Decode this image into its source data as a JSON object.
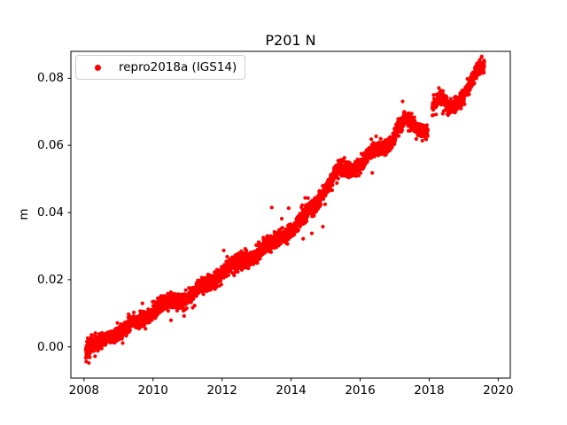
{
  "chart_data": {
    "type": "scatter",
    "title": "P201 N",
    "xlabel": "",
    "ylabel": "m",
    "grid": false,
    "legend_position": "upper left",
    "xlim": [
      2007.62,
      2020.35
    ],
    "ylim": [
      -0.0093,
      0.088
    ],
    "xticks": [
      {
        "value": 2008,
        "label": "2008"
      },
      {
        "value": 2010,
        "label": "2010"
      },
      {
        "value": 2012,
        "label": "2012"
      },
      {
        "value": 2014,
        "label": "2014"
      },
      {
        "value": 2016,
        "label": "2016"
      },
      {
        "value": 2018,
        "label": "2018"
      },
      {
        "value": 2020,
        "label": "2020"
      }
    ],
    "yticks": [
      {
        "value": 0.0,
        "label": "0.00"
      },
      {
        "value": 0.02,
        "label": "0.02"
      },
      {
        "value": 0.04,
        "label": "0.04"
      },
      {
        "value": 0.06,
        "label": "0.06"
      },
      {
        "value": 0.08,
        "label": "0.08"
      }
    ],
    "series": [
      {
        "name": "repro2018a (IGS14)",
        "color": "#ff0000",
        "marker": "point",
        "marker_radius_px": 2.1,
        "seed": 20180,
        "t_start": 2008.05,
        "t_end": 2019.6,
        "dt": 0.0027397,
        "noise_sigma": 0.0011,
        "annual_amplitude": 0.0008,
        "annual_phase": 0.15,
        "outlier_prob": 0.004,
        "outlier_mag_min": 0.002,
        "outlier_mag_max": 0.005,
        "gaps": [
          [
            2017.96,
            2018.09
          ]
        ],
        "trend_anchors": [
          [
            2008.05,
            -0.001
          ],
          [
            2008.2,
            0.0
          ],
          [
            2008.5,
            0.001
          ],
          [
            2008.8,
            0.004
          ],
          [
            2009.0,
            0.0045
          ],
          [
            2009.3,
            0.006
          ],
          [
            2009.5,
            0.007
          ],
          [
            2009.75,
            0.009
          ],
          [
            2010.0,
            0.011
          ],
          [
            2010.3,
            0.0125
          ],
          [
            2010.6,
            0.0135
          ],
          [
            2010.9,
            0.0145
          ],
          [
            2011.2,
            0.016
          ],
          [
            2011.5,
            0.018
          ],
          [
            2011.8,
            0.0205
          ],
          [
            2012.0,
            0.0225
          ],
          [
            2012.3,
            0.024
          ],
          [
            2012.6,
            0.0255
          ],
          [
            2012.9,
            0.0275
          ],
          [
            2013.2,
            0.0295
          ],
          [
            2013.5,
            0.031
          ],
          [
            2013.8,
            0.0335
          ],
          [
            2014.1,
            0.0355
          ],
          [
            2014.4,
            0.039
          ],
          [
            2014.7,
            0.0425
          ],
          [
            2015.0,
            0.0475
          ],
          [
            2015.3,
            0.052
          ],
          [
            2015.7,
            0.053
          ],
          [
            2016.0,
            0.0545
          ],
          [
            2016.3,
            0.0575
          ],
          [
            2016.6,
            0.059
          ],
          [
            2016.9,
            0.0615
          ],
          [
            2017.1,
            0.0655
          ],
          [
            2017.3,
            0.0675
          ],
          [
            2017.5,
            0.066
          ],
          [
            2017.7,
            0.0648
          ],
          [
            2017.95,
            0.0645
          ],
          [
            2018.1,
            0.0715
          ],
          [
            2018.3,
            0.0737
          ],
          [
            2018.5,
            0.0718
          ],
          [
            2018.65,
            0.071
          ],
          [
            2018.85,
            0.0735
          ],
          [
            2019.0,
            0.0755
          ],
          [
            2019.15,
            0.0775
          ],
          [
            2019.3,
            0.08
          ],
          [
            2019.45,
            0.0825
          ],
          [
            2019.6,
            0.083
          ]
        ],
        "outliers": [
          [
            2008.14,
            -0.0048
          ],
          [
            2008.17,
            -0.0031
          ],
          [
            2008.32,
            -0.0028
          ],
          [
            2009.1,
            0.0024
          ],
          [
            2010.52,
            0.0079
          ],
          [
            2010.9,
            0.0092
          ],
          [
            2011.82,
            0.0182
          ],
          [
            2012.05,
            0.0287
          ],
          [
            2012.35,
            0.0213
          ],
          [
            2013.42,
            0.0282
          ],
          [
            2013.44,
            0.0415
          ],
          [
            2013.93,
            0.0413
          ],
          [
            2014.32,
            0.0422
          ],
          [
            2014.35,
            0.0322
          ],
          [
            2014.6,
            0.0338
          ],
          [
            2014.92,
            0.0358
          ],
          [
            2016.35,
            0.0518
          ],
          [
            2017.12,
            0.0628
          ],
          [
            2018.2,
            0.0692
          ],
          [
            2018.55,
            0.069
          ]
        ]
      }
    ],
    "frame_color": "#000000",
    "background_color": "#ffffff"
  }
}
